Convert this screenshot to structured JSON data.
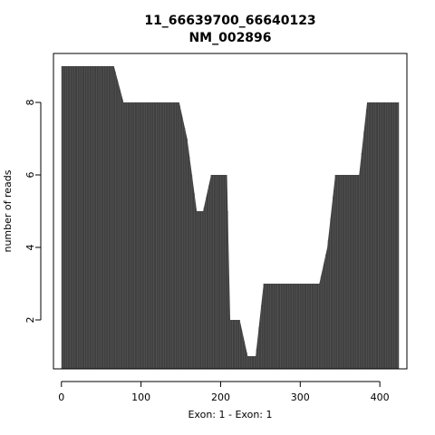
{
  "chart_data": {
    "type": "area",
    "title_line1": "11_66639700_66640123",
    "title_line2": "NM_002896",
    "xlabel": "Exon: 1 - Exon: 1",
    "ylabel": "number of reads",
    "xlim": [
      -10,
      434
    ],
    "ylim": [
      0.65,
      9.35
    ],
    "xticks": [
      0,
      100,
      200,
      300,
      400
    ],
    "yticks": [
      2,
      4,
      6,
      8
    ],
    "fill_color": "#404040",
    "series": [
      {
        "x": [
          0,
          66,
          78,
          148,
          158,
          170,
          178,
          188,
          208,
          212,
          224,
          234,
          244,
          254,
          314,
          324,
          334,
          344,
          374,
          384,
          394,
          424
        ],
        "y": [
          9,
          9,
          8,
          8,
          7,
          5,
          5,
          6,
          6,
          2,
          2,
          1,
          1,
          3,
          3,
          3,
          4,
          6,
          6,
          8,
          8,
          8
        ]
      }
    ]
  }
}
